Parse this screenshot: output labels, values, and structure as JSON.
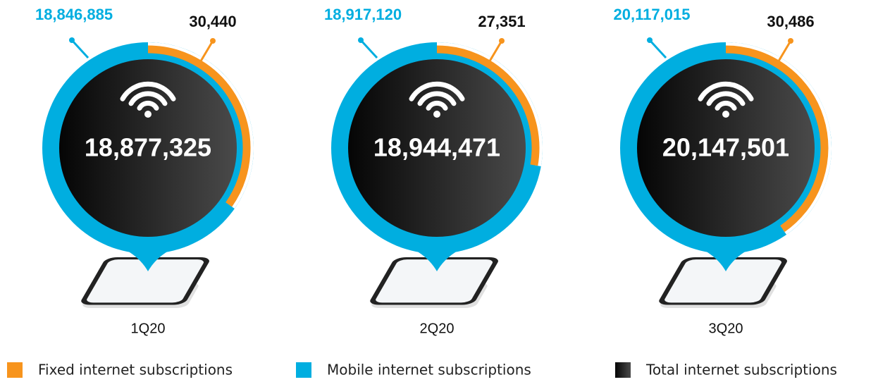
{
  "panels": [
    {
      "mobile": "18,846,885",
      "fixed": "30,440",
      "total": "18,877,325",
      "period": "1Q20"
    },
    {
      "mobile": "18,917,120",
      "fixed": "27,351",
      "total": "18,944,471",
      "period": "2Q20"
    },
    {
      "mobile": "20,117,015",
      "fixed": "30,486",
      "total": "20,147,501",
      "period": "3Q20"
    }
  ],
  "legend": [
    {
      "label": "Fixed internet subscriptions"
    },
    {
      "label": "Mobile internet subscriptions"
    },
    {
      "label": "Total internet subscriptions"
    }
  ]
}
